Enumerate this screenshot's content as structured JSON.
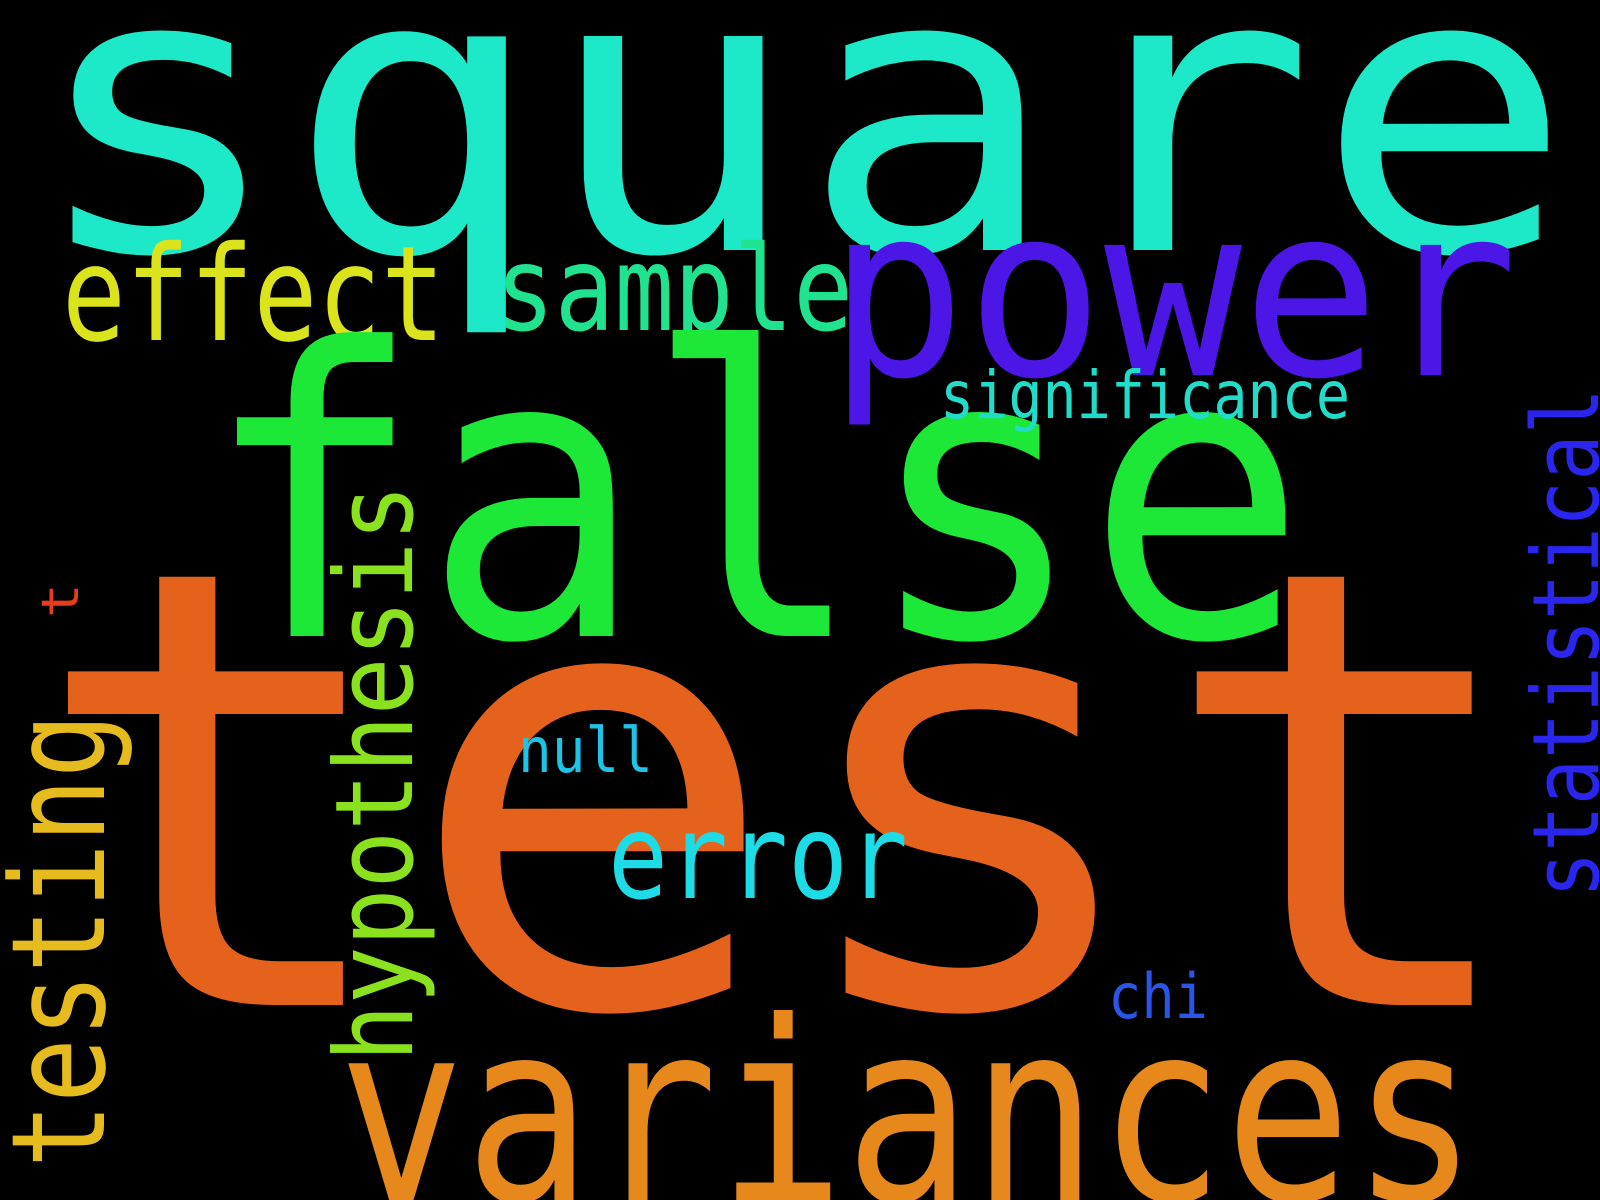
{
  "words": [
    {
      "key": "square",
      "text": "square",
      "color": "#1de9c8",
      "vertical": false
    },
    {
      "key": "power",
      "text": "power",
      "color": "#4b16e6",
      "vertical": false
    },
    {
      "key": "effect",
      "text": "effect",
      "color": "#dbe31c",
      "vertical": false
    },
    {
      "key": "sample",
      "text": "sample",
      "color": "#21e28e",
      "vertical": false
    },
    {
      "key": "false",
      "text": "false",
      "color": "#1de838",
      "vertical": false
    },
    {
      "key": "significance",
      "text": "significance",
      "color": "#21dcc8",
      "vertical": false
    },
    {
      "key": "statistical",
      "text": "statistical",
      "color": "#2b26ee",
      "vertical": true
    },
    {
      "key": "t",
      "text": "t",
      "color": "#e63c1e",
      "vertical": true
    },
    {
      "key": "hypothesis",
      "text": "hypothesis",
      "color": "#8ae21e",
      "vertical": true
    },
    {
      "key": "testing",
      "text": "testing",
      "color": "#e5bb1e",
      "vertical": true
    },
    {
      "key": "test",
      "text": "test",
      "color": "#e5621c",
      "vertical": false
    },
    {
      "key": "null",
      "text": "null",
      "color": "#1ec4e6",
      "vertical": false
    },
    {
      "key": "error",
      "text": "error",
      "color": "#1edce6",
      "vertical": false
    },
    {
      "key": "chi",
      "text": "chi",
      "color": "#2a55e6",
      "vertical": false
    },
    {
      "key": "variances",
      "text": "variances",
      "color": "#e6881c",
      "vertical": false
    }
  ]
}
